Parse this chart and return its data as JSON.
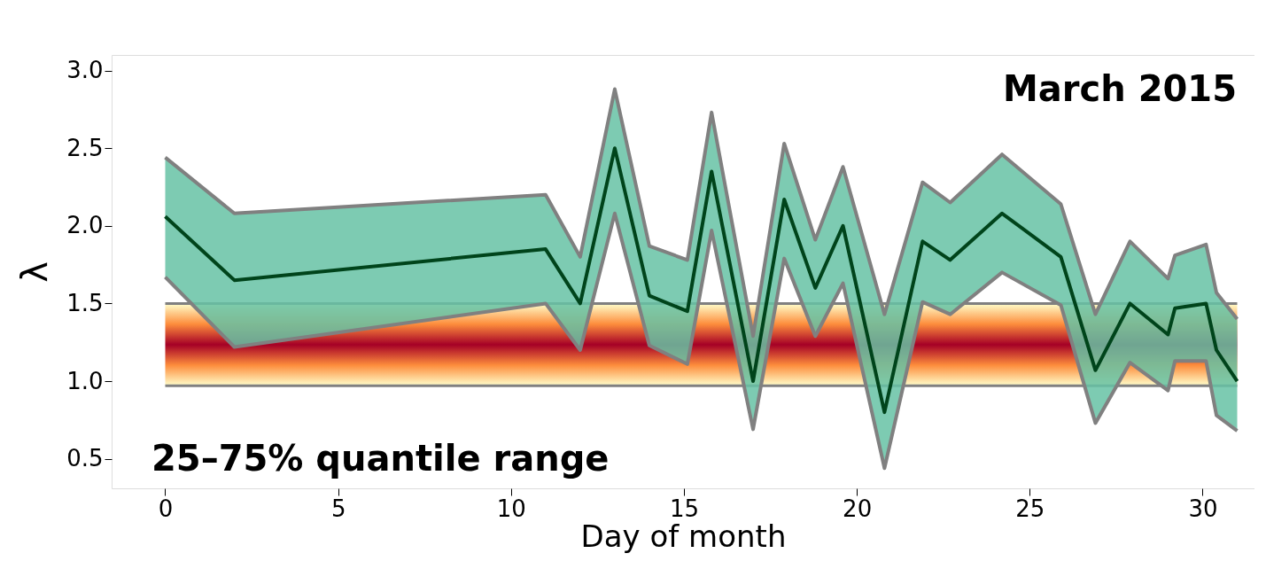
{
  "chart_data": {
    "type": "line",
    "xlabel": "Day of month",
    "ylabel": "λ",
    "annotations": [
      "March 2015",
      "25–75% quantile range"
    ],
    "x": [
      0,
      2,
      11,
      12,
      13,
      14,
      15.1,
      15.8,
      17,
      17.9,
      18.8,
      19.6,
      20.8,
      21.9,
      22.7,
      24.2,
      25.9,
      26.9,
      27.9,
      29,
      29.2,
      30.1,
      30.4,
      31
    ],
    "series": [
      {
        "color": "#00441b",
        "values": [
          2.06,
          1.65,
          1.85,
          1.5,
          2.5,
          1.55,
          1.45,
          2.35,
          1.0,
          2.17,
          1.6,
          2.0,
          0.8,
          1.9,
          1.78,
          2.08,
          1.8,
          1.07,
          1.5,
          1.3,
          1.47,
          1.5,
          1.2,
          1.0
        ],
        "lower": [
          1.67,
          1.22,
          1.5,
          1.2,
          2.08,
          1.23,
          1.11,
          1.97,
          0.69,
          1.79,
          1.29,
          1.63,
          0.44,
          1.51,
          1.43,
          1.7,
          1.49,
          0.73,
          1.12,
          0.94,
          1.13,
          1.13,
          0.78,
          0.68
        ],
        "upper": [
          2.44,
          2.08,
          2.2,
          1.8,
          2.88,
          1.87,
          1.78,
          2.73,
          1.29,
          2.53,
          1.91,
          2.38,
          1.43,
          2.28,
          2.15,
          2.46,
          2.14,
          1.43,
          1.9,
          1.66,
          1.81,
          1.88,
          1.57,
          1.4
        ]
      },
      {
        "color": "#808080",
        "values": [
          1.67,
          1.22,
          1.5,
          1.2,
          2.08,
          1.23,
          1.11,
          1.97,
          0.69,
          1.79,
          1.29,
          1.63,
          0.44,
          1.51,
          1.43,
          1.7,
          1.49,
          0.73,
          1.12,
          0.94,
          1.13,
          1.13,
          0.78,
          0.68
        ]
      },
      {
        "color": "#808080",
        "values": [
          2.44,
          2.08,
          2.2,
          1.8,
          2.88,
          1.87,
          1.78,
          2.73,
          1.29,
          2.53,
          1.91,
          2.38,
          1.43,
          2.28,
          2.15,
          2.46,
          2.14,
          1.43,
          1.9,
          1.66,
          1.81,
          1.88,
          1.57,
          1.4
        ]
      }
    ],
    "bands": [
      {
        "axis": "y",
        "from": 0.97,
        "to": 1.5,
        "color": "#a50026"
      }
    ],
    "ref_lines": [
      {
        "axis": "y",
        "value": 0.97,
        "color": "#808080"
      },
      {
        "axis": "y",
        "value": 1.5,
        "color": "#808080"
      }
    ],
    "xlim": [
      -1.55,
      31.5
    ],
    "ylim": [
      0.31,
      3.1
    ],
    "xticks": [
      0,
      5,
      10,
      15,
      20,
      25,
      30
    ],
    "yticks": [
      0.5,
      {
        "value": 1,
        "label": "1.0"
      },
      1.5,
      {
        "value": 2,
        "label": "2.0"
      },
      2.5,
      {
        "value": 3,
        "label": "3.0"
      }
    ],
    "grid": false,
    "marker": "none",
    "line_style": "solid"
  }
}
